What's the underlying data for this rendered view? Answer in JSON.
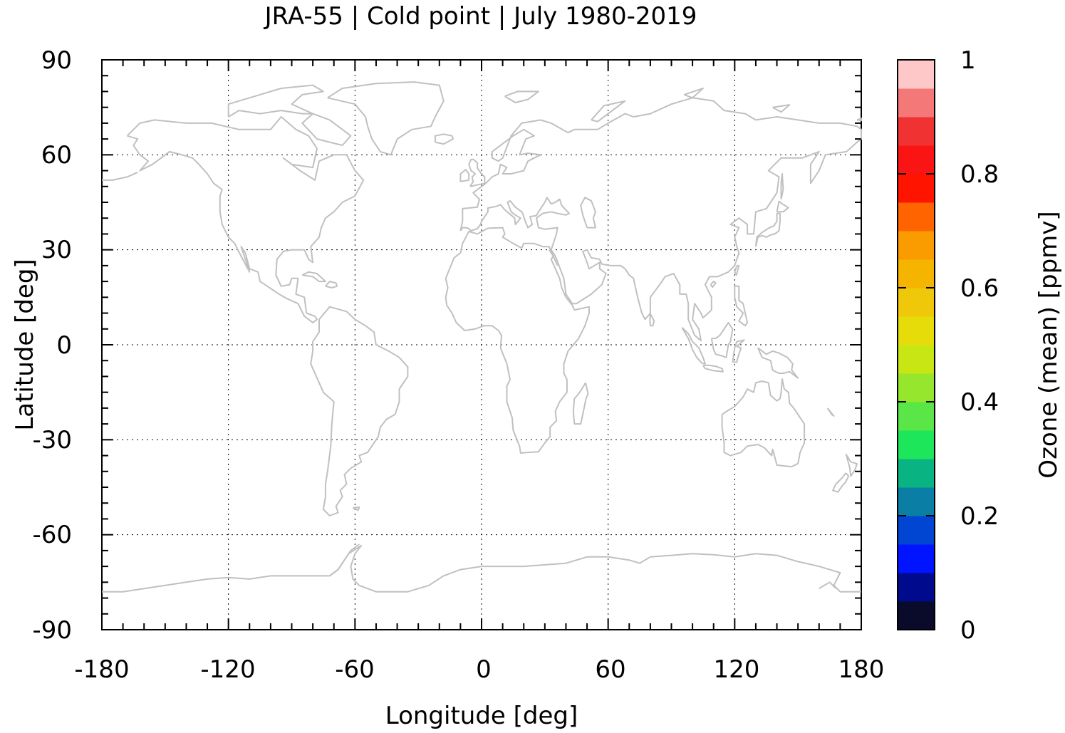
{
  "chart_data": {
    "type": "heatmap",
    "title": "JRA-55 | Cold point | July 1980-2019",
    "xlabel": "Longitude [deg]",
    "ylabel": "Latitude [deg]",
    "xlim": [
      -180,
      180
    ],
    "ylim": [
      -90,
      90
    ],
    "x_ticks": [
      "-180",
      "-120",
      "-60",
      "0",
      "60",
      "120",
      "180"
    ],
    "y_ticks": [
      "90",
      "60",
      "30",
      "0",
      "-30",
      "-60",
      "-90"
    ],
    "grid": true,
    "coastline_color": "#c0c0c0",
    "colorbar": {
      "label": "Ozone (mean) [ppmv]",
      "range": [
        0,
        1
      ],
      "ticks": [
        "0",
        "0.2",
        "0.4",
        "0.6",
        "0.8",
        "1"
      ],
      "levels": 20,
      "colors": [
        "#0a0a2a",
        "#000a8c",
        "#0014ff",
        "#0046d2",
        "#0a7ea5",
        "#0ab482",
        "#1ee65a",
        "#5ae646",
        "#96e62d",
        "#c8e614",
        "#e6dc0a",
        "#f0c80a",
        "#f5b400",
        "#fa9b00",
        "#ff6400",
        "#ff1400",
        "#fa1414",
        "#f03232",
        "#f57878",
        "#ffc8c8"
      ]
    },
    "values_shown": "none (only coastlines are drawn; no data fill visible)"
  }
}
